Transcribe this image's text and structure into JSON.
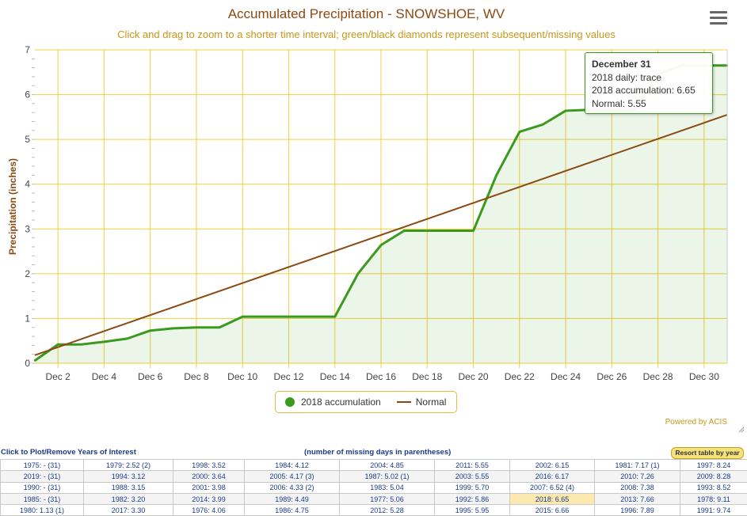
{
  "title": "Accumulated Precipitation - SNOWSHOE, WV",
  "subtitle": "Click and drag to zoom to a shorter time interval; green/black diamonds represent subsequent/missing values",
  "menu_icon": "hamburger-menu-icon",
  "credit": "Powered by ACIS",
  "colors": {
    "accumulation": "#3a9a1e",
    "normal": "#8b4a12",
    "grid": "#f0d040",
    "title": "#8b4a12",
    "subtitle": "#c8961a"
  },
  "chart_data": {
    "type": "line",
    "ylabel": "Precipitation (inches)",
    "xlabel": "",
    "ylim": [
      0,
      7
    ],
    "yticks": [
      0,
      1,
      2,
      3,
      4,
      5,
      6,
      7
    ],
    "xticks": [
      "Dec 2",
      "Dec 4",
      "Dec 6",
      "Dec 8",
      "Dec 10",
      "Dec 12",
      "Dec 14",
      "Dec 16",
      "Dec 18",
      "Dec 20",
      "Dec 22",
      "Dec 24",
      "Dec 26",
      "Dec 28",
      "Dec 30"
    ],
    "xtick_days": [
      2,
      4,
      6,
      8,
      10,
      12,
      14,
      16,
      18,
      20,
      22,
      24,
      26,
      28,
      30
    ],
    "xlim": [
      1,
      31
    ],
    "grid": true,
    "legend_position": "bottom-center",
    "series": [
      {
        "name": "2018 accumulation",
        "type": "area-line",
        "days": [
          1,
          2,
          3,
          4,
          5,
          6,
          7,
          8,
          9,
          10,
          11,
          12,
          13,
          14,
          15,
          16,
          17,
          18,
          19,
          20,
          21,
          22,
          23,
          24,
          25,
          26,
          27,
          28,
          29,
          30,
          31
        ],
        "values": [
          0.06,
          0.42,
          0.42,
          0.48,
          0.55,
          0.73,
          0.78,
          0.8,
          0.8,
          1.04,
          1.04,
          1.04,
          1.04,
          1.04,
          2.0,
          2.64,
          2.96,
          2.96,
          2.96,
          2.96,
          4.2,
          5.17,
          5.33,
          5.64,
          5.66,
          5.66,
          5.66,
          6.45,
          6.65,
          6.65,
          6.65
        ]
      },
      {
        "name": "Normal",
        "type": "line",
        "days": [
          1,
          31
        ],
        "values": [
          0.18,
          5.55
        ]
      }
    ]
  },
  "legend": {
    "series1": "2018 accumulation",
    "series2": "Normal"
  },
  "tooltip": {
    "title": "December 31",
    "line1": "2018 daily: trace",
    "line2": "2018 accumulation: 6.65",
    "line3": "Normal: 5.55"
  },
  "table": {
    "left_header": "Click to Plot/Remove Years of Interest",
    "mid_header": "(number of missing days in parentheses)",
    "resort_label": "Resort table by year",
    "highlight": "2018: 6.65",
    "rows": [
      [
        "1975: - (31)",
        "1979: 2.52 (2)",
        "1998: 3.52",
        "1984: 4.12",
        "2004: 4.85",
        "2011: 5.55",
        "2002: 6.15",
        "1981: 7.17 (1)",
        "1997: 8.24"
      ],
      [
        "2019: - (31)",
        "1994: 3.12",
        "2000: 3.64",
        "2005: 4.17 (3)",
        "1987: 5.02 (1)",
        "2003: 5.55",
        "2016: 6.17",
        "2010: 7.26",
        "2009: 8.28"
      ],
      [
        "1990: - (31)",
        "1988: 3.15",
        "2001: 3.98",
        "2006: 4.33 (2)",
        "1983: 5.04",
        "1999: 5.70",
        "2007: 6.52 (4)",
        "2008: 7.38",
        "1993: 8.52"
      ],
      [
        "1985: - (31)",
        "1982: 3.20",
        "2014: 3.99",
        "1989: 4.49",
        "1977: 5.06",
        "1992: 5.86",
        "2018: 6.65",
        "2013: 7.66",
        "1978: 9.11"
      ],
      [
        "1980: 1.13 (1)",
        "2017: 3.30",
        "1976: 4.06",
        "1986: 4.75",
        "2012: 5.28",
        "1995: 5.95",
        "2015: 6.66",
        "1996: 7.89",
        "1991: 9.74"
      ]
    ]
  }
}
